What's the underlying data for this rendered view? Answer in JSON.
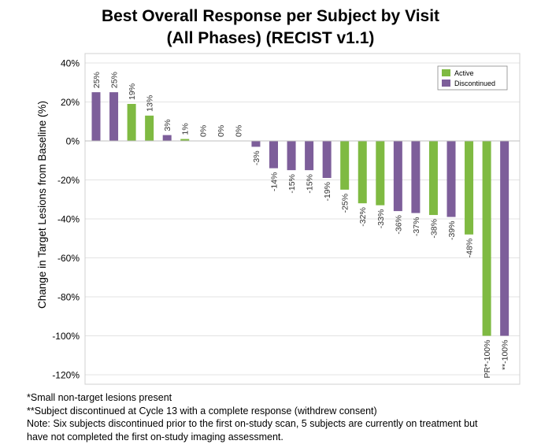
{
  "title_line1": "Best Overall Response per Subject by Visit",
  "title_line2": "(All Phases) (RECIST v1.1)",
  "chart_data": {
    "type": "bar",
    "ylabel": "Change in Target Lesions from Baseline (%)",
    "ylim": [
      -120,
      40
    ],
    "yticks": [
      40,
      20,
      0,
      -20,
      -40,
      -60,
      -80,
      -100,
      -120
    ],
    "ytick_labels": [
      "40%",
      "20%",
      "0%",
      "-20%",
      "-40%",
      "-60%",
      "-80%",
      "-100%",
      "-120%"
    ],
    "grid": true,
    "legend_position": "top-right",
    "series": [
      {
        "name": "Active",
        "color": "#7fba42"
      },
      {
        "name": "Discontinued",
        "color": "#7d5e9a"
      }
    ],
    "values": [
      25,
      25,
      19,
      13,
      3,
      1,
      0,
      0,
      0,
      -3,
      -14,
      -15,
      -15,
      -19,
      -25,
      -32,
      -33,
      -36,
      -37,
      -38,
      -39,
      -48,
      -100,
      -100
    ],
    "status": [
      "Discontinued",
      "Discontinued",
      "Active",
      "Active",
      "Discontinued",
      "Active",
      "Active",
      "Active",
      "Active",
      "Discontinued",
      "Discontinued",
      "Discontinued",
      "Discontinued",
      "Discontinued",
      "Active",
      "Active",
      "Active",
      "Discontinued",
      "Discontinued",
      "Active",
      "Discontinued",
      "Active",
      "Active",
      "Discontinued"
    ],
    "labels": [
      "25%",
      "25%",
      "19%",
      "13%",
      "3%",
      "1%",
      "0%",
      "0%",
      "0%",
      "-3%",
      "-14%",
      "-15%",
      "-15%",
      "-19%",
      "-25%",
      "-32%",
      "-33%",
      "-36%",
      "-37%",
      "-38%",
      "-39%",
      "-48%",
      "PR*-100%",
      "**-100%"
    ]
  },
  "notes": [
    "*Small non-target lesions present",
    "**Subject discontinued at Cycle 13 with a complete response (withdrew consent)",
    "Note: Six subjects discontinued prior to the first on-study scan, 5 subjects are currently on treatment but",
    "have not completed the first on-study imaging assessment."
  ]
}
